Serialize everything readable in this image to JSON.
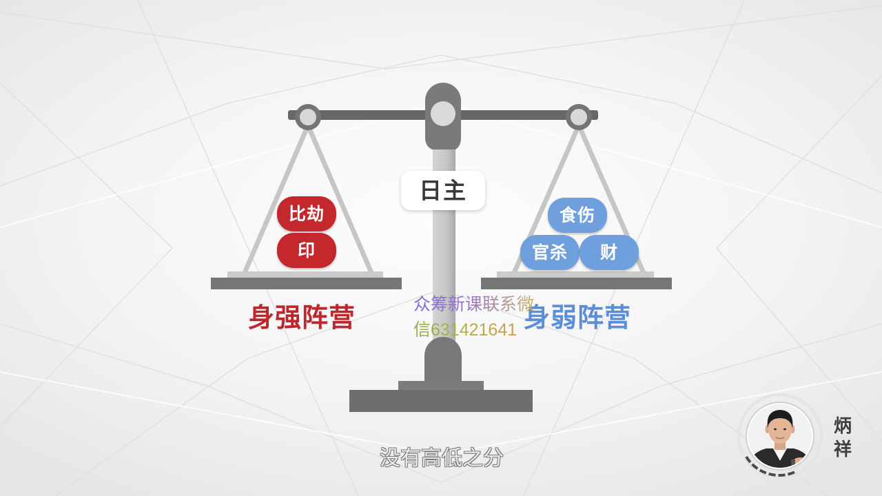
{
  "scale": {
    "center_label": "日主",
    "left_weights": [
      "比劫",
      "印"
    ],
    "right_weights": [
      "食伤",
      "官杀",
      "财"
    ],
    "left_caption": "身强阵营",
    "right_caption": "身弱阵营"
  },
  "watermark": {
    "line1": "众筹新课联系微",
    "line2": "信631421641"
  },
  "subtitle": "没有高低之分",
  "presenter": {
    "name": [
      "炳",
      "祥"
    ]
  },
  "colors": {
    "strong_red": "#c5282c",
    "weak_blue": "#6f9fdc",
    "caption_red": "#c0272d",
    "caption_blue": "#5b8ed6",
    "scale_gray": "#6e6e6e"
  }
}
